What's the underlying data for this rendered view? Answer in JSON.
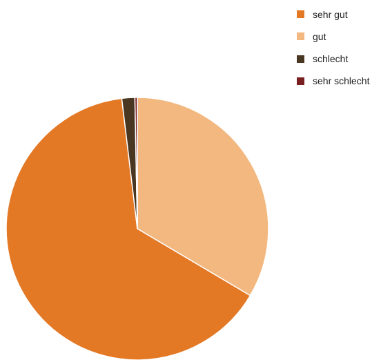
{
  "chart_data": {
    "type": "pie",
    "title": "",
    "legend_position": "top-right",
    "start_angle_deg": 0,
    "direction": "clockwise",
    "slices": [
      {
        "label": "gut",
        "value": 33.5,
        "color": "#F2B880"
      },
      {
        "label": "sehr gut",
        "value": 64.6,
        "color": "#E37825"
      },
      {
        "label": "schlecht",
        "value": 1.6,
        "color": "#4A3722"
      },
      {
        "label": "sehr schlecht",
        "value": 0.3,
        "color": "#7A1F1F"
      }
    ],
    "legend": [
      {
        "label": "sehr gut",
        "color": "#E37825"
      },
      {
        "label": "gut",
        "color": "#F2B880"
      },
      {
        "label": "schlecht",
        "color": "#4A3722"
      },
      {
        "label": "sehr schlecht",
        "color": "#7A1F1F"
      }
    ]
  }
}
